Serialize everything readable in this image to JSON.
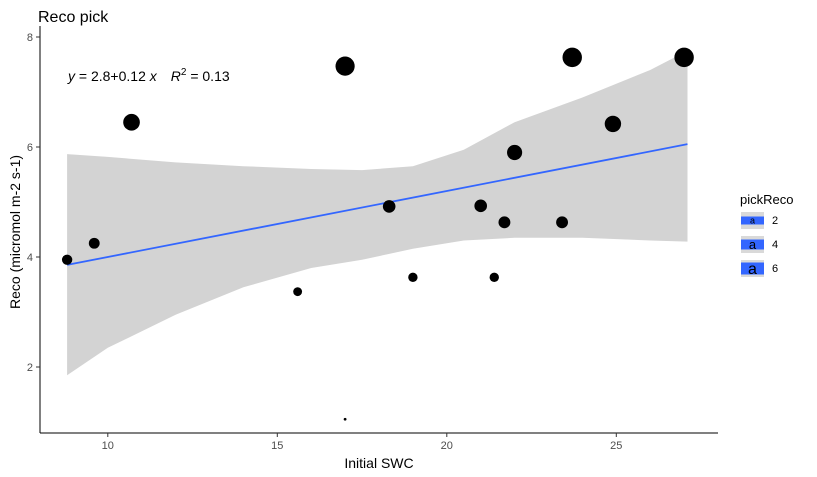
{
  "chart_data": {
    "type": "scatter",
    "title": "Reco pick",
    "xlabel": "Initial SWC",
    "ylabel": "Reco (micromol m-2 s-1)",
    "xlim": [
      8.0,
      28.0
    ],
    "ylim": [
      0.8,
      8.2
    ],
    "x_ticks": [
      10,
      15,
      20,
      25
    ],
    "y_ticks": [
      2,
      4,
      6,
      8
    ],
    "grid": false,
    "equation": {
      "lhs": "y = 2.8",
      "op": "+",
      "rhs": "0.12",
      "var": "x",
      "r2_label": "R",
      "r2_exp": "2",
      "r2_value": "= 0.13"
    },
    "regression": {
      "intercept": 2.8,
      "slope": 0.12,
      "color": "#3366ff"
    },
    "confidence_band": {
      "color": "#d3d3d3",
      "x": [
        8.8,
        10,
        12,
        14,
        16,
        17.5,
        19,
        20.5,
        22,
        24,
        26,
        27.1
      ],
      "lower": [
        1.85,
        2.35,
        2.95,
        3.45,
        3.8,
        3.95,
        4.15,
        4.3,
        4.35,
        4.35,
        4.3,
        4.28
      ],
      "upper": [
        5.87,
        5.82,
        5.72,
        5.65,
        5.6,
        5.58,
        5.65,
        5.95,
        6.45,
        6.9,
        7.4,
        7.75
      ]
    },
    "points": [
      {
        "x": 8.8,
        "y": 3.95,
        "size": 4.0
      },
      {
        "x": 9.6,
        "y": 4.25,
        "size": 4.2
      },
      {
        "x": 10.7,
        "y": 6.45,
        "size": 6.5
      },
      {
        "x": 15.6,
        "y": 3.37,
        "size": 3.4
      },
      {
        "x": 17.0,
        "y": 7.47,
        "size": 7.5
      },
      {
        "x": 17.0,
        "y": 1.05,
        "size": 1.0
      },
      {
        "x": 18.3,
        "y": 4.92,
        "size": 4.9
      },
      {
        "x": 19.0,
        "y": 3.63,
        "size": 3.6
      },
      {
        "x": 21.0,
        "y": 4.93,
        "size": 4.9
      },
      {
        "x": 21.4,
        "y": 3.63,
        "size": 3.6
      },
      {
        "x": 21.7,
        "y": 4.63,
        "size": 4.6
      },
      {
        "x": 22.0,
        "y": 5.9,
        "size": 5.9
      },
      {
        "x": 23.4,
        "y": 4.63,
        "size": 4.6
      },
      {
        "x": 23.7,
        "y": 7.63,
        "size": 7.6
      },
      {
        "x": 24.9,
        "y": 6.42,
        "size": 6.4
      },
      {
        "x": 27.0,
        "y": 7.63,
        "size": 7.6
      }
    ],
    "legend": {
      "title": "pickReco",
      "position": "right",
      "key_glyph": "a",
      "key_color": "#3366ff",
      "entries": [
        "2",
        "4",
        "6"
      ]
    }
  }
}
